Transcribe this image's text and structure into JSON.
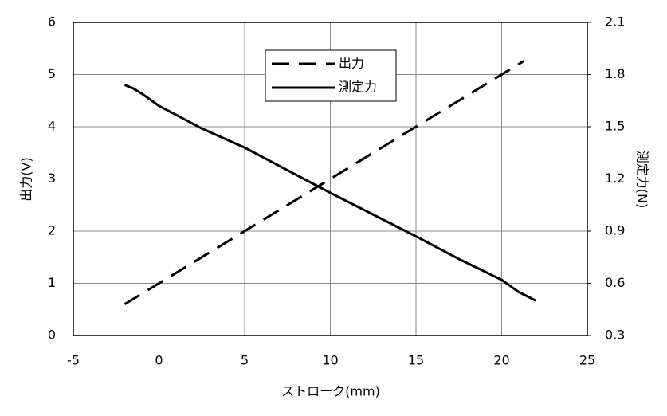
{
  "chart_data": {
    "type": "line",
    "x_label": "ストローク(mm)",
    "y_label": "出力(V)",
    "y2_label": "測定力(N)",
    "xlim": [
      -5,
      25
    ],
    "xticks": [
      -5,
      0,
      5,
      10,
      15,
      20,
      25
    ],
    "ylim": [
      0,
      6
    ],
    "yticks": [
      0,
      1,
      2,
      3,
      4,
      5,
      6
    ],
    "y2lim": [
      0.3,
      2.1
    ],
    "y2ticks": [
      0.3,
      0.6,
      0.9,
      1.2,
      1.5,
      1.8,
      2.1
    ],
    "grid": true,
    "legend": "upper center",
    "series": [
      {
        "name": "出力",
        "color": "#000000",
        "line_style": "dashed",
        "x": [
          -2,
          0,
          5,
          10,
          15,
          20,
          21.3
        ],
        "values": [
          0.6,
          1.0,
          2.0,
          3.0,
          4.0,
          5.0,
          5.26
        ]
      },
      {
        "name": "測定力",
        "color": "#000000",
        "line_style": "solid",
        "axis": "y2",
        "x": [
          -2,
          -1.5,
          -1,
          0,
          2.5,
          5,
          10,
          15,
          17.5,
          20,
          21,
          22
        ],
        "values": [
          1.74,
          1.72,
          1.69,
          1.62,
          1.49,
          1.38,
          1.12,
          0.87,
          0.74,
          0.62,
          0.55,
          0.5
        ]
      }
    ]
  }
}
